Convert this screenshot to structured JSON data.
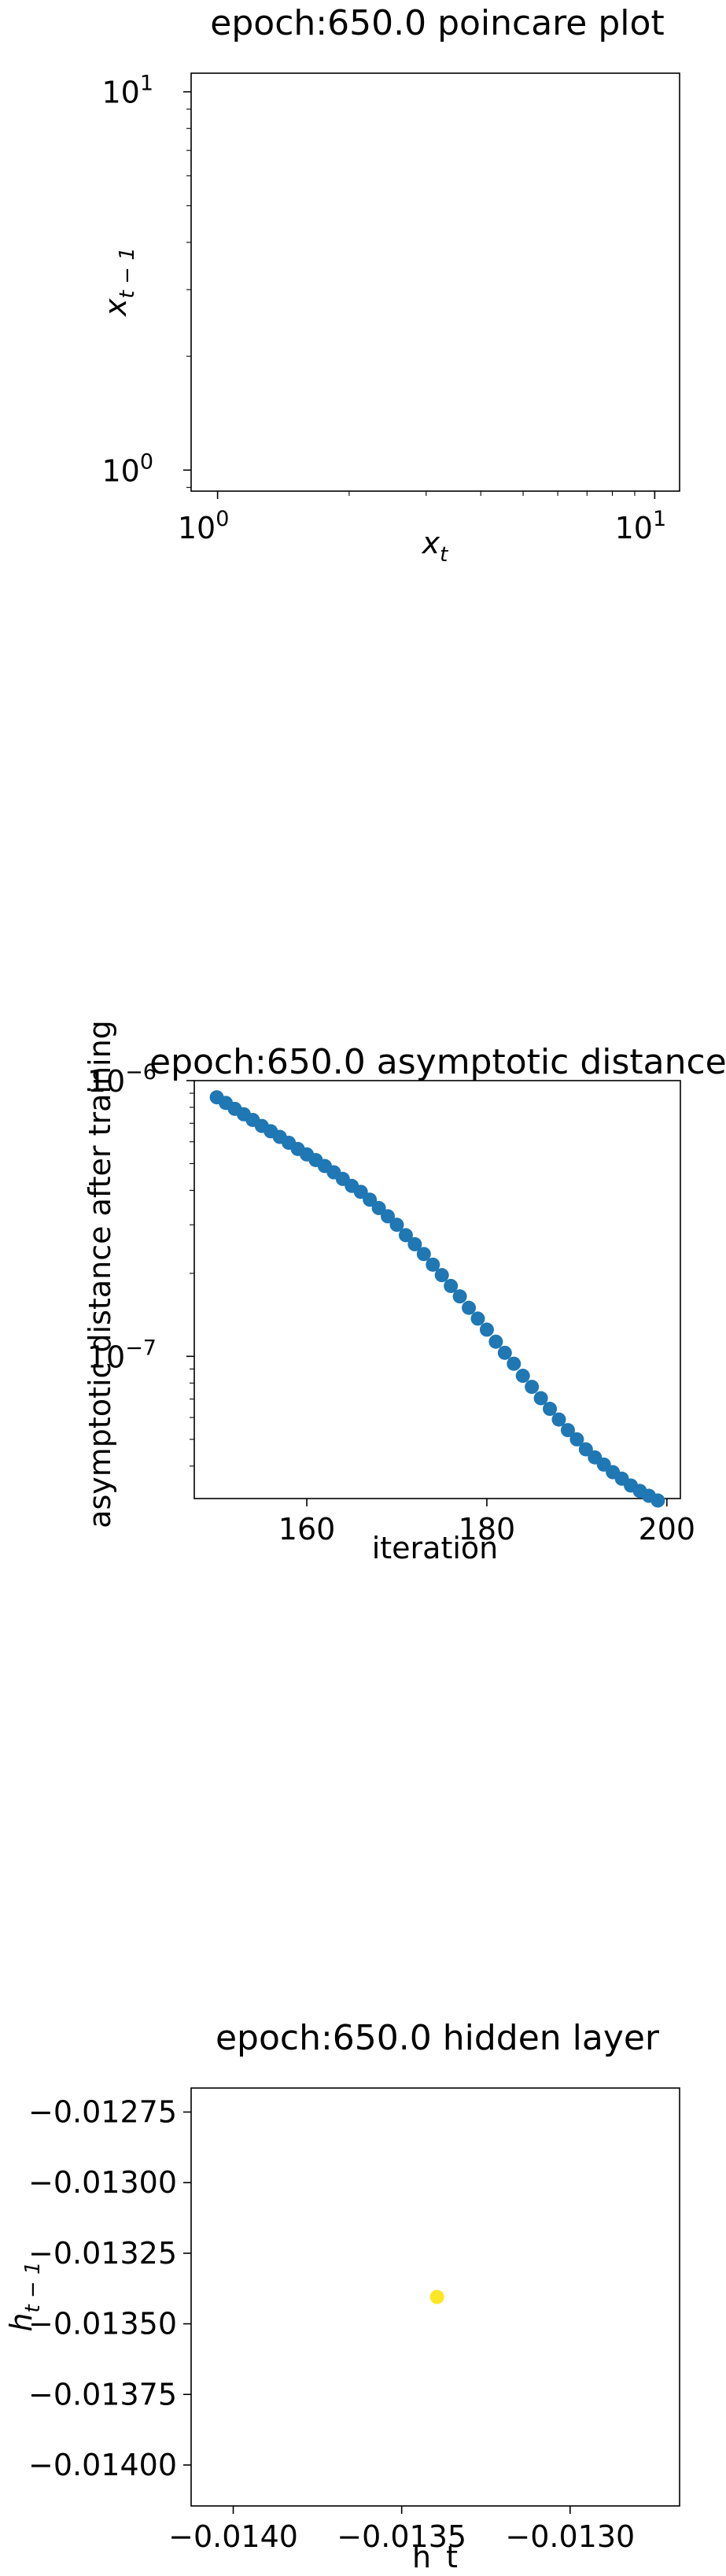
{
  "chart_data": [
    {
      "type": "scatter",
      "title": "epoch:650.0 poincare plot",
      "xlabel": "x_t",
      "ylabel": "x_{t-1}",
      "xscale": "log",
      "yscale": "log",
      "xlim": [
        0.87,
        11.4
      ],
      "ylim": [
        0.88,
        11.2
      ],
      "x_ticks": [
        1,
        10
      ],
      "y_ticks": [
        1,
        10
      ],
      "x_tick_labels": [
        {
          "base": "10",
          "exp": "0"
        },
        {
          "base": "10",
          "exp": "1"
        }
      ],
      "y_tick_labels": [
        {
          "base": "10",
          "exp": "0"
        },
        {
          "base": "10",
          "exp": "1"
        }
      ],
      "points": [],
      "grid": false
    },
    {
      "type": "scatter",
      "title": "epoch:650.0 asymptotic distance",
      "xlabel": "iteration",
      "ylabel": "asymptotic distance after training",
      "yscale": "log",
      "xlim": [
        147.5,
        201.5
      ],
      "ylim": [
        3.05e-08,
        1e-06
      ],
      "x_ticks": [
        160,
        180,
        200
      ],
      "x_tick_labels": [
        "160",
        "180",
        "200"
      ],
      "y_ticks": [
        1e-07,
        1e-06
      ],
      "y_tick_labels": [
        {
          "base": "10",
          "exp": "−7"
        },
        {
          "base": "10",
          "exp": "−6"
        }
      ],
      "color": "#1f77b4",
      "x": [
        150,
        151,
        152,
        153,
        154,
        155,
        156,
        157,
        158,
        159,
        160,
        161,
        162,
        163,
        164,
        165,
        166,
        167,
        168,
        169,
        170,
        171,
        172,
        173,
        174,
        175,
        176,
        177,
        178,
        179,
        180,
        181,
        182,
        183,
        184,
        185,
        186,
        187,
        188,
        189,
        190,
        191,
        192,
        193,
        194,
        195,
        196,
        197,
        198,
        199
      ],
      "y": [
        8.7e-07,
        8.3e-07,
        7.9e-07,
        7.55e-07,
        7.2e-07,
        6.85e-07,
        6.55e-07,
        6.25e-07,
        5.95e-07,
        5.65e-07,
        5.4e-07,
        5.15e-07,
        4.9e-07,
        4.65e-07,
        4.4e-07,
        4.15e-07,
        3.95e-07,
        3.7e-07,
        3.45e-07,
        3.22e-07,
        3e-07,
        2.75e-07,
        2.55e-07,
        2.35e-07,
        2.15e-07,
        1.97e-07,
        1.8e-07,
        1.65e-07,
        1.5e-07,
        1.37e-07,
        1.25e-07,
        1.13e-07,
        1.03e-07,
        9.4e-08,
        8.5e-08,
        7.75e-08,
        7.05e-08,
        6.45e-08,
        5.9e-08,
        5.4e-08,
        5e-08,
        4.6e-08,
        4.3e-08,
        4.05e-08,
        3.8e-08,
        3.6e-08,
        3.4e-08,
        3.25e-08,
        3.12e-08,
        3e-08
      ],
      "grid": false
    },
    {
      "type": "scatter",
      "title": "epoch:650.0 hidden layer",
      "xlabel": "h_t",
      "ylabel": "h_{t-1}",
      "xlim": [
        -0.014125,
        -0.012675
      ],
      "ylim": [
        -0.014145,
        -0.012665
      ],
      "x_ticks": [
        -0.014,
        -0.0135,
        -0.013
      ],
      "x_tick_labels": [
        "−0.0140",
        "−0.0135",
        "−0.0130"
      ],
      "y_ticks": [
        -0.014,
        -0.01375,
        -0.0135,
        -0.01325,
        -0.013,
        -0.01275
      ],
      "y_tick_labels": [
        "−0.01400",
        "−0.01375",
        "−0.01350",
        "−0.01325",
        "−0.01300",
        "−0.01275"
      ],
      "color": "#fde725",
      "x": [
        -0.013395
      ],
      "y": [
        -0.013405
      ],
      "grid": false
    }
  ]
}
